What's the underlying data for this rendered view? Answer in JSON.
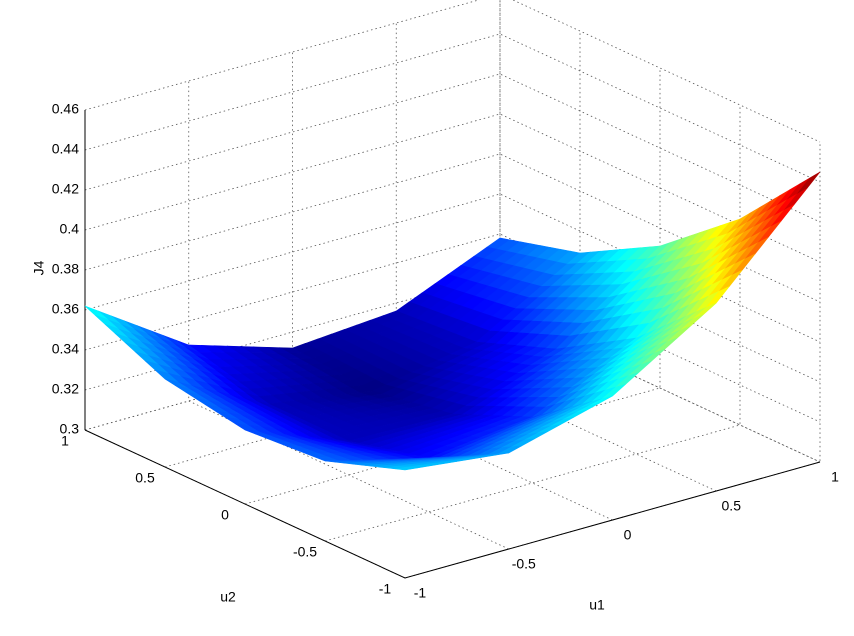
{
  "chart_data": {
    "type": "surface",
    "xlabel": "u1",
    "ylabel": "u2",
    "zlabel": "J4",
    "x": [
      -1,
      -0.5,
      0,
      0.5,
      1
    ],
    "y": [
      -1,
      -0.5,
      0,
      0.5,
      1
    ],
    "z": [
      [
        0.354,
        0.348,
        0.362,
        0.394,
        0.445
      ],
      [
        0.34,
        0.327,
        0.333,
        0.358,
        0.403
      ],
      [
        0.337,
        0.317,
        0.316,
        0.334,
        0.371
      ],
      [
        0.344,
        0.317,
        0.309,
        0.319,
        0.349
      ],
      [
        0.362,
        0.328,
        0.312,
        0.316,
        0.338
      ]
    ],
    "xlim": [
      -1,
      1
    ],
    "ylim": [
      -1,
      1
    ],
    "zlim": [
      0.3,
      0.46
    ],
    "xticks": [
      -1,
      -0.5,
      0,
      0.5,
      1
    ],
    "yticks": [
      -1,
      -0.5,
      0,
      0.5,
      1
    ],
    "zticks": [
      0.3,
      0.32,
      0.34,
      0.36,
      0.38,
      0.4,
      0.42,
      0.44,
      0.46
    ],
    "grid": true,
    "colormap": "jet"
  }
}
